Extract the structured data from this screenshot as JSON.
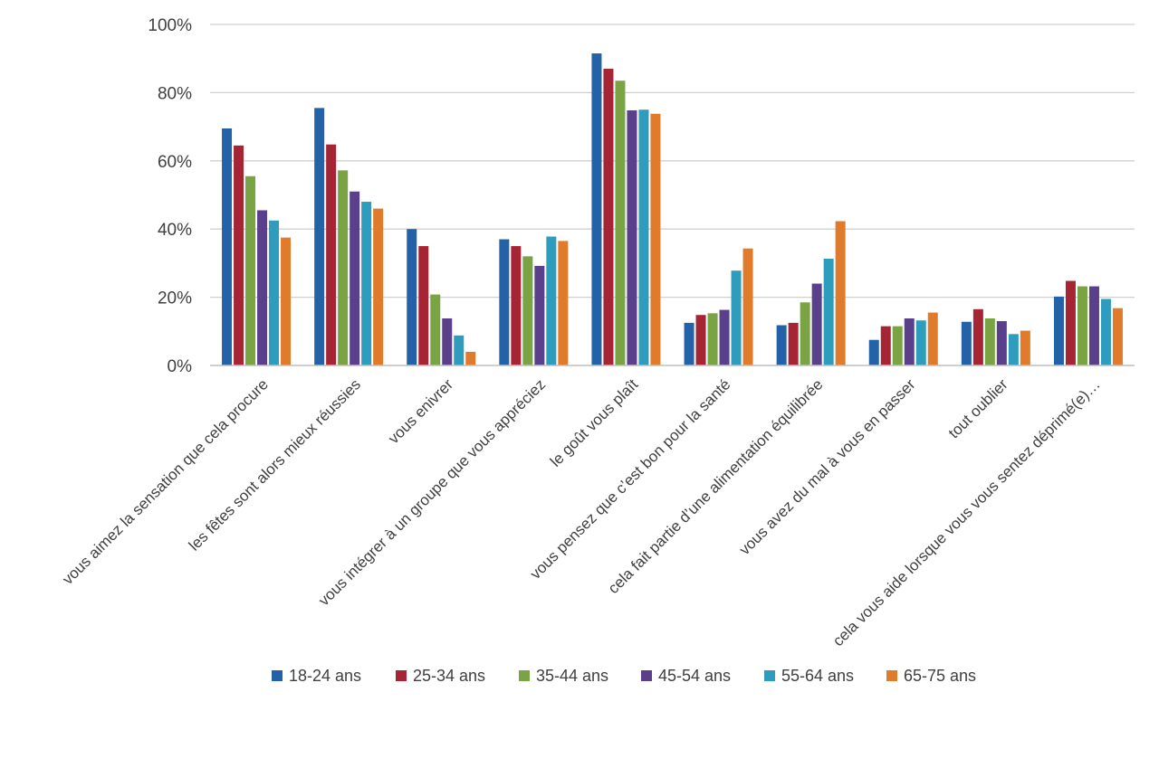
{
  "chart_data": {
    "type": "bar",
    "categories": [
      "vous aimez la sensation que cela procure",
      "les fêtes sont alors mieux réussies",
      "vous enivrer",
      "vous intégrer à un groupe que vous appréciez",
      "le goût vous plaît",
      "vous pensez que c’est bon pour la santé",
      "cela fait partie d’une alimentation équilibrée",
      "vous avez du mal à vous en passer",
      "tout oublier",
      "cela vous aide lorsque vous vous sentez déprimé(e)…"
    ],
    "series": [
      {
        "name": "18-24 ans",
        "color": "#2462a8",
        "values": [
          69.5,
          75.5,
          40,
          37,
          91.5,
          12.5,
          11.8,
          7.5,
          12.8,
          20.2
        ]
      },
      {
        "name": "25-34 ans",
        "color": "#a52535",
        "values": [
          64.5,
          64.8,
          35,
          35,
          87,
          14.8,
          12.5,
          11.5,
          16.5,
          24.8
        ]
      },
      {
        "name": "35-44 ans",
        "color": "#7aa443",
        "values": [
          55.5,
          57.2,
          20.8,
          32,
          83.5,
          15.3,
          18.5,
          11.5,
          13.8,
          23.2
        ]
      },
      {
        "name": "45-54 ans",
        "color": "#5a3f8a",
        "values": [
          45.5,
          51,
          13.8,
          29.2,
          74.8,
          16.3,
          24,
          13.8,
          13,
          23.2
        ]
      },
      {
        "name": "55-64 ans",
        "color": "#2e9dbd",
        "values": [
          42.5,
          48,
          8.8,
          37.8,
          75,
          27.8,
          31.3,
          13.2,
          9.2,
          19.5
        ]
      },
      {
        "name": "65-75 ans",
        "color": "#e07b2b",
        "values": [
          37.5,
          46,
          4,
          36.5,
          73.8,
          34.3,
          42.3,
          15.5,
          10.2,
          16.8
        ]
      }
    ],
    "ylim": [
      0,
      100
    ],
    "yticks": [
      0,
      20,
      40,
      60,
      80,
      100
    ],
    "ytick_labels": [
      "0%",
      "20%",
      "40%",
      "60%",
      "80%",
      "100%"
    ],
    "grid": true,
    "legend_position": "bottom",
    "title": "",
    "xlabel": "",
    "ylabel": ""
  }
}
